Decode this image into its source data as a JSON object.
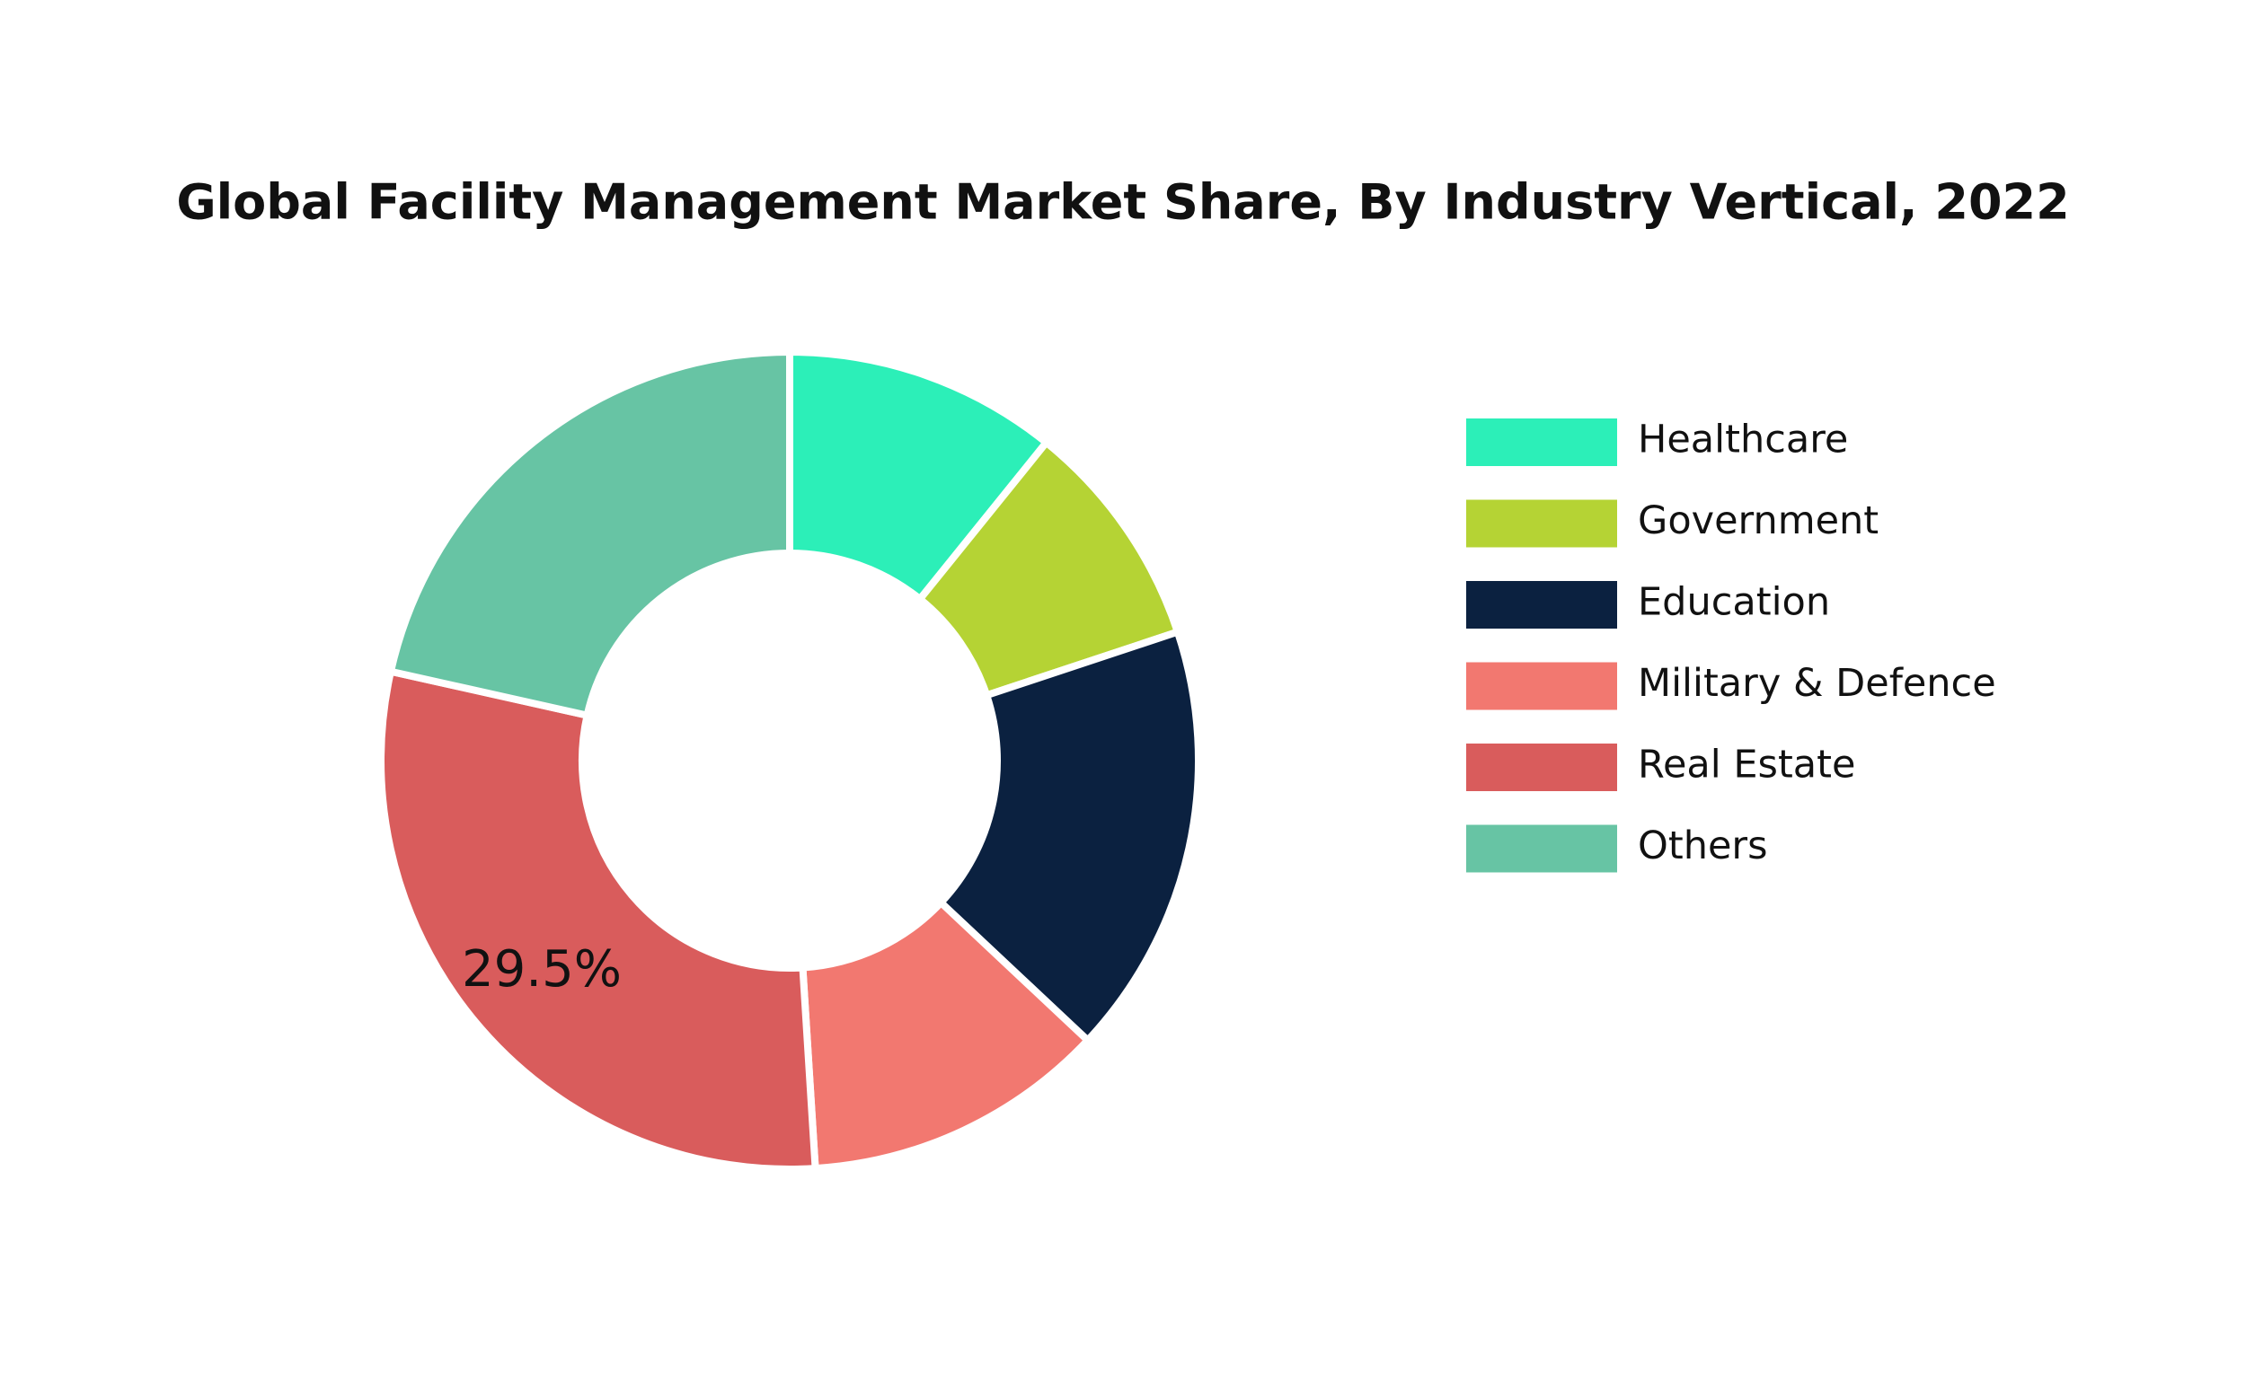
{
  "chart_data": {
    "type": "pie",
    "title": "Global Facility Management Market Share, By Industry Vertical, 2022",
    "categories": [
      "Healthcare",
      "Government",
      "Education",
      "Military & Defence",
      "Real Estate",
      "Others"
    ],
    "values": [
      10.8,
      9.1,
      17.1,
      12.0,
      29.5,
      21.5
    ],
    "value_labels": [
      null,
      null,
      null,
      null,
      "29.5%",
      null
    ],
    "colors": [
      "#2cefb8",
      "#b5d334",
      "#0b2140",
      "#f27870",
      "#d95c5c",
      "#67c4a4"
    ],
    "donut": true,
    "legend": "right"
  }
}
